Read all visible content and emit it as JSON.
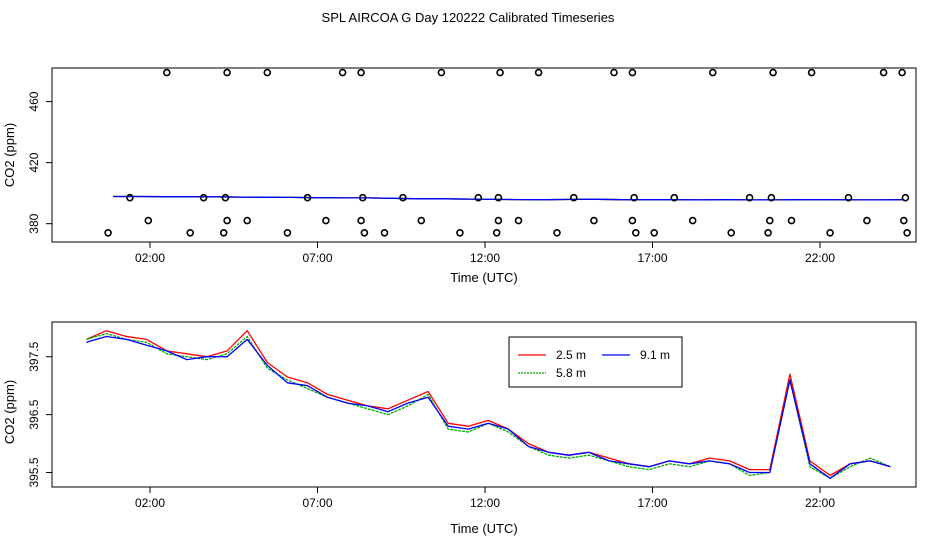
{
  "title": "SPL AIRCOA G  Day 120222  Calibrated Timeseries",
  "chart_data": [
    {
      "type": "scatter",
      "xlabel": "Time (UTC)",
      "ylabel": "CO2 (ppm)",
      "xlim": [
        0.0,
        24.0
      ],
      "ylim": [
        368,
        482
      ],
      "x_ticks": [
        2,
        7,
        12,
        17,
        22
      ],
      "x_tick_labels": [
        "02:00",
        "07:00",
        "12:00",
        "17:00",
        "22:00"
      ],
      "y_ticks": [
        380,
        420,
        460
      ],
      "y_tick_labels": [
        "380",
        "420",
        "460"
      ],
      "flag_points": [
        {
          "x": 0.75,
          "y": 374
        },
        {
          "x": 1.4,
          "y": 397
        },
        {
          "x": 1.95,
          "y": 382
        },
        {
          "x": 2.5,
          "y": 479
        },
        {
          "x": 3.2,
          "y": 374
        },
        {
          "x": 3.6,
          "y": 397
        },
        {
          "x": 4.2,
          "y": 374
        },
        {
          "x": 4.25,
          "y": 397
        },
        {
          "x": 4.3,
          "y": 382
        },
        {
          "x": 4.3,
          "y": 479
        },
        {
          "x": 4.9,
          "y": 382
        },
        {
          "x": 5.5,
          "y": 479
        },
        {
          "x": 6.1,
          "y": 374
        },
        {
          "x": 6.7,
          "y": 397
        },
        {
          "x": 7.25,
          "y": 382
        },
        {
          "x": 7.75,
          "y": 479
        },
        {
          "x": 8.3,
          "y": 382
        },
        {
          "x": 8.3,
          "y": 479
        },
        {
          "x": 8.35,
          "y": 397
        },
        {
          "x": 8.4,
          "y": 374
        },
        {
          "x": 9.0,
          "y": 374
        },
        {
          "x": 9.55,
          "y": 397
        },
        {
          "x": 10.1,
          "y": 382
        },
        {
          "x": 10.7,
          "y": 479
        },
        {
          "x": 11.25,
          "y": 374
        },
        {
          "x": 11.8,
          "y": 397
        },
        {
          "x": 12.35,
          "y": 374
        },
        {
          "x": 12.4,
          "y": 382
        },
        {
          "x": 12.4,
          "y": 397
        },
        {
          "x": 12.45,
          "y": 479
        },
        {
          "x": 13.0,
          "y": 382
        },
        {
          "x": 13.6,
          "y": 479
        },
        {
          "x": 14.15,
          "y": 374
        },
        {
          "x": 14.65,
          "y": 397
        },
        {
          "x": 15.25,
          "y": 382
        },
        {
          "x": 15.85,
          "y": 479
        },
        {
          "x": 16.4,
          "y": 479
        },
        {
          "x": 16.4,
          "y": 382
        },
        {
          "x": 16.45,
          "y": 397
        },
        {
          "x": 16.5,
          "y": 374
        },
        {
          "x": 17.05,
          "y": 374
        },
        {
          "x": 17.65,
          "y": 397
        },
        {
          "x": 18.2,
          "y": 382
        },
        {
          "x": 18.8,
          "y": 479
        },
        {
          "x": 19.35,
          "y": 374
        },
        {
          "x": 19.9,
          "y": 397
        },
        {
          "x": 20.45,
          "y": 374
        },
        {
          "x": 20.5,
          "y": 382
        },
        {
          "x": 20.55,
          "y": 397
        },
        {
          "x": 20.6,
          "y": 479
        },
        {
          "x": 21.15,
          "y": 382
        },
        {
          "x": 21.75,
          "y": 479
        },
        {
          "x": 22.3,
          "y": 374
        },
        {
          "x": 22.85,
          "y": 397
        },
        {
          "x": 23.4,
          "y": 382
        },
        {
          "x": 23.9,
          "y": 479
        },
        {
          "x": 24.45,
          "y": 479
        },
        {
          "x": 24.5,
          "y": 382
        },
        {
          "x": 24.55,
          "y": 397
        },
        {
          "x": 24.6,
          "y": 374
        }
      ],
      "series": [
        {
          "name": "2.5 m",
          "color": "#ff0000",
          "values": [
            397.8,
            397.8,
            397.7,
            397.7,
            397.6,
            397.4,
            397.3,
            397.2,
            397.0,
            396.9,
            396.9,
            396.6,
            396.3,
            396.3,
            396.1,
            395.9,
            395.8,
            395.7,
            395.9,
            396.0,
            395.7,
            395.7,
            395.7,
            395.6,
            395.7,
            395.6,
            395.6,
            395.7,
            395.7,
            395.6,
            395.6,
            395.7
          ]
        },
        {
          "name": "5.8 m",
          "color": "#00aa00",
          "values": [
            397.8,
            397.8,
            397.7,
            397.7,
            397.6,
            397.4,
            397.3,
            397.2,
            397.0,
            396.9,
            396.9,
            396.6,
            396.3,
            396.3,
            396.1,
            395.9,
            395.8,
            395.7,
            395.9,
            396.0,
            395.7,
            395.7,
            395.7,
            395.6,
            395.7,
            395.6,
            395.6,
            395.7,
            395.7,
            395.6,
            395.6,
            395.7
          ]
        },
        {
          "name": "9.1 m",
          "color": "#0000ff",
          "values": [
            397.8,
            397.8,
            397.7,
            397.7,
            397.6,
            397.4,
            397.3,
            397.2,
            397.0,
            396.9,
            396.9,
            396.6,
            396.3,
            396.3,
            396.1,
            395.9,
            395.8,
            395.7,
            395.9,
            396.0,
            395.7,
            395.7,
            395.7,
            395.6,
            395.7,
            395.6,
            395.6,
            395.7,
            395.7,
            395.6,
            395.6,
            395.7
          ]
        }
      ]
    },
    {
      "type": "line",
      "xlabel": "Time (UTC)",
      "ylabel": "CO2 (ppm)",
      "xlim": [
        0.0,
        24.0
      ],
      "ylim": [
        395.25,
        398.1
      ],
      "x_ticks": [
        2,
        7,
        12,
        17,
        22
      ],
      "x_tick_labels": [
        "02:00",
        "07:00",
        "12:00",
        "17:00",
        "22:00"
      ],
      "y_ticks": [
        395.5,
        396.5,
        397.5
      ],
      "y_tick_labels": [
        "395.5",
        "396.5",
        "397.5"
      ],
      "legend": {
        "position": "top-center",
        "columns": 2
      },
      "x": [
        0.1,
        0.7,
        1.3,
        1.9,
        2.5,
        3.1,
        3.7,
        4.3,
        4.9,
        5.5,
        6.1,
        6.7,
        7.3,
        7.9,
        8.5,
        9.1,
        9.7,
        10.3,
        10.9,
        11.5,
        12.1,
        12.7,
        13.3,
        13.9,
        14.5,
        15.1,
        15.7,
        16.3,
        16.9,
        17.5,
        18.1,
        18.7,
        19.3,
        19.9,
        20.5,
        21.1,
        21.7,
        22.3,
        22.9,
        23.5,
        24.1
      ],
      "series": [
        {
          "name": "2.5 m",
          "color": "#ff0000",
          "values": [
            397.8,
            397.95,
            397.85,
            397.8,
            397.6,
            397.55,
            397.5,
            397.6,
            397.95,
            397.4,
            397.15,
            397.05,
            396.85,
            396.75,
            396.65,
            396.6,
            396.75,
            396.9,
            396.35,
            396.3,
            396.4,
            396.25,
            396.0,
            395.85,
            395.8,
            395.85,
            395.75,
            395.65,
            395.6,
            395.7,
            395.65,
            395.75,
            395.7,
            395.55,
            395.55,
            397.2,
            395.7,
            395.45,
            395.65,
            395.7,
            395.6
          ]
        },
        {
          "name": "5.8 m",
          "color": "#00aa00",
          "values": [
            397.8,
            397.9,
            397.8,
            397.75,
            397.55,
            397.5,
            397.45,
            397.55,
            397.85,
            397.3,
            397.1,
            396.95,
            396.8,
            396.7,
            396.6,
            396.5,
            396.65,
            396.85,
            396.25,
            396.2,
            396.35,
            396.2,
            395.95,
            395.8,
            395.75,
            395.8,
            395.7,
            395.6,
            395.55,
            395.65,
            395.6,
            395.7,
            395.65,
            395.45,
            395.5,
            397.1,
            395.6,
            395.4,
            395.6,
            395.75,
            395.6
          ]
        },
        {
          "name": "9.1 m",
          "color": "#0000ff",
          "values": [
            397.75,
            397.85,
            397.8,
            397.7,
            397.6,
            397.45,
            397.5,
            397.5,
            397.8,
            397.35,
            397.05,
            397.0,
            396.8,
            396.7,
            396.65,
            396.55,
            396.7,
            396.8,
            396.3,
            396.25,
            396.35,
            396.25,
            395.95,
            395.85,
            395.8,
            395.85,
            395.7,
            395.65,
            395.6,
            395.7,
            395.65,
            395.7,
            395.65,
            395.5,
            395.5,
            397.1,
            395.65,
            395.4,
            395.65,
            395.7,
            395.6
          ]
        }
      ]
    }
  ]
}
